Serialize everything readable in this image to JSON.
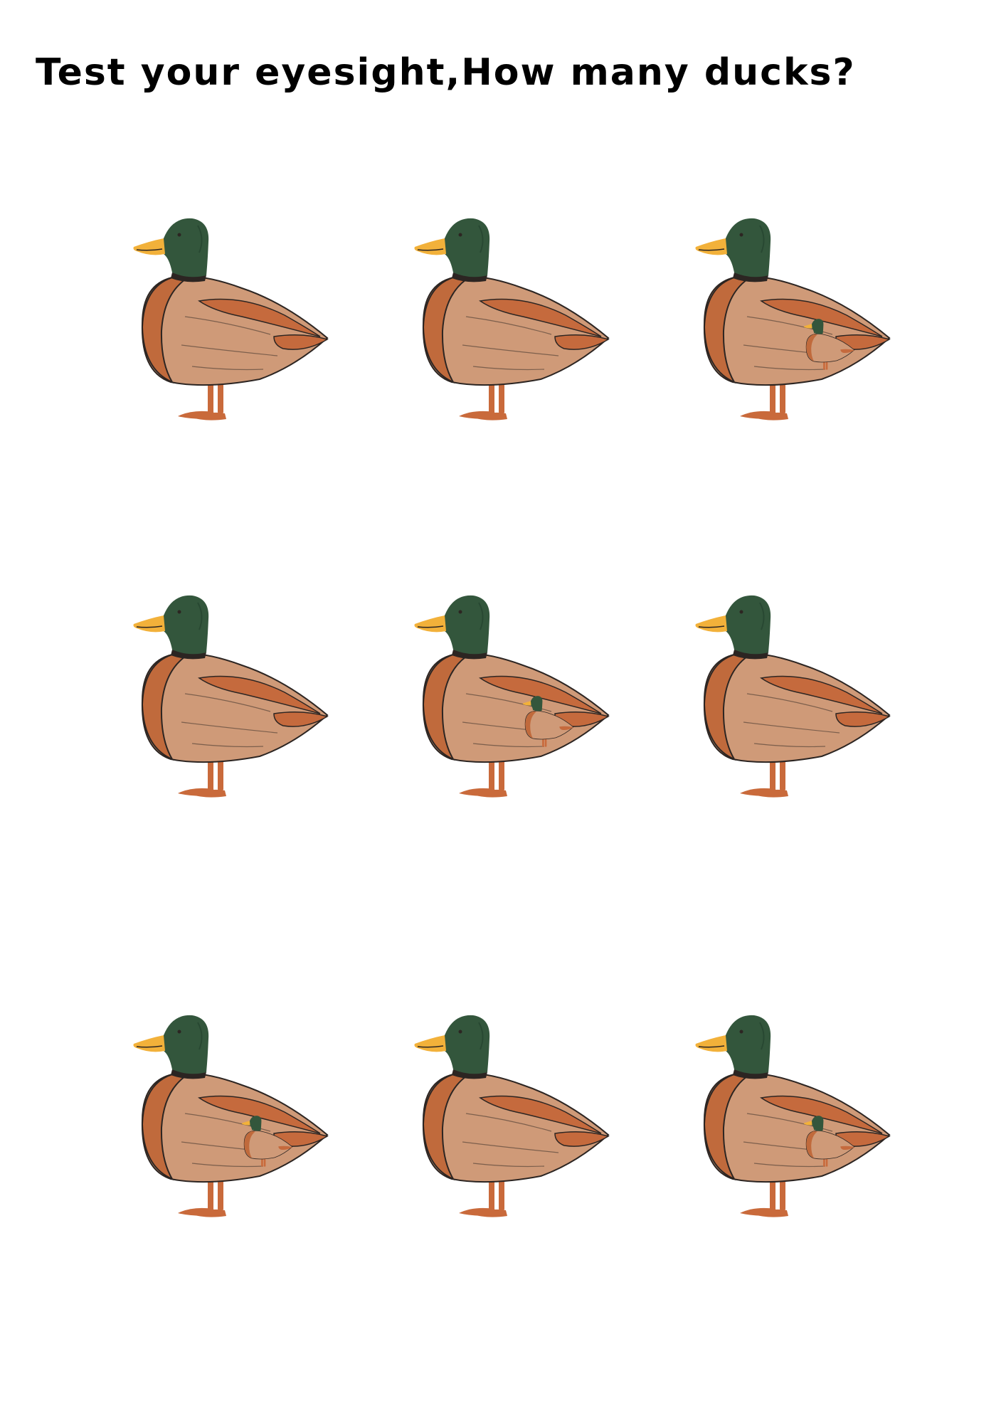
{
  "title": "Test your eyesight,How many ducks?",
  "colors": {
    "head": "#33563c",
    "beak": "#f2b13a",
    "body": "#cf9a78",
    "breast": "#c06a3c",
    "wing": "#c56a3d",
    "leg": "#c96a3b",
    "outline": "#2c2522",
    "background": "#ffffff"
  },
  "ducks": [
    {
      "id": "duck-1",
      "hidden_small_duck": false
    },
    {
      "id": "duck-2",
      "hidden_small_duck": false
    },
    {
      "id": "duck-3",
      "hidden_small_duck": true
    },
    {
      "id": "duck-4",
      "hidden_small_duck": false
    },
    {
      "id": "duck-5",
      "hidden_small_duck": true
    },
    {
      "id": "duck-6",
      "hidden_small_duck": false
    },
    {
      "id": "duck-7",
      "hidden_small_duck": true
    },
    {
      "id": "duck-8",
      "hidden_small_duck": false
    },
    {
      "id": "duck-9",
      "hidden_small_duck": true
    }
  ]
}
